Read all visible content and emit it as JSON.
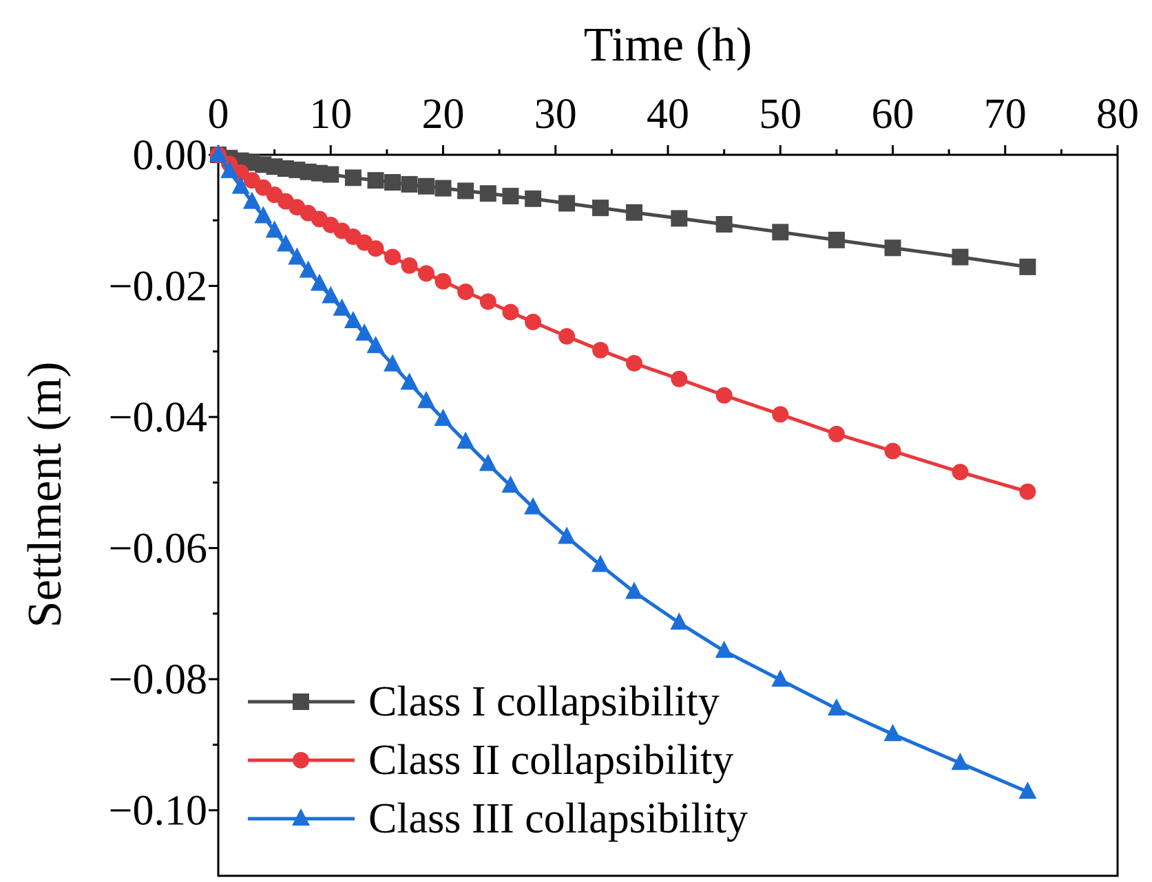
{
  "chart_data": {
    "type": "line",
    "title": "",
    "xlabel": "Time (h)",
    "ylabel": "Settlment (m)",
    "x_axis_position": "top",
    "xlim": [
      0,
      80
    ],
    "ylim": [
      -0.11,
      0.0
    ],
    "x_ticks": [
      0,
      10,
      20,
      30,
      40,
      50,
      60,
      70,
      80
    ],
    "x_tick_labels": [
      "0",
      "10",
      "20",
      "30",
      "40",
      "50",
      "60",
      "70",
      "80"
    ],
    "y_ticks": [
      0.0,
      -0.02,
      -0.04,
      -0.06,
      -0.08,
      -0.1
    ],
    "y_tick_labels": [
      "0.00",
      "−0.02",
      "−0.04",
      "−0.06",
      "−0.08",
      "−0.10"
    ],
    "legend_position": "bottom-left",
    "series": [
      {
        "name": "Class I collapsibility",
        "color": "#4a4a4a",
        "marker": "square",
        "x": [
          0,
          1,
          2,
          3,
          4,
          5,
          6,
          7,
          8,
          9,
          10,
          12,
          14,
          15.5,
          17,
          18.5,
          20,
          22,
          24,
          26,
          28,
          31,
          34,
          37,
          41,
          45,
          50,
          55,
          60,
          66,
          72
        ],
        "values": [
          0,
          -0.0005,
          -0.0009,
          -0.0012,
          -0.0015,
          -0.0018,
          -0.0021,
          -0.0023,
          -0.0026,
          -0.0028,
          -0.003,
          -0.0035,
          -0.0039,
          -0.0042,
          -0.0045,
          -0.0048,
          -0.0051,
          -0.0055,
          -0.0059,
          -0.0063,
          -0.0067,
          -0.0074,
          -0.0081,
          -0.0088,
          -0.0097,
          -0.0106,
          -0.0118,
          -0.013,
          -0.0142,
          -0.0156,
          -0.0171
        ]
      },
      {
        "name": "Class II collapsibility",
        "color": "#e8393d",
        "marker": "circle",
        "x": [
          0,
          1,
          2,
          3,
          4,
          5,
          6,
          7,
          8,
          9,
          10,
          11,
          12,
          13,
          14,
          15.5,
          17,
          18.5,
          20,
          22,
          24,
          26,
          28,
          31,
          34,
          37,
          41,
          45,
          50,
          55,
          60,
          66,
          72
        ],
        "values": [
          0,
          -0.0014,
          -0.0027,
          -0.0039,
          -0.005,
          -0.0061,
          -0.0071,
          -0.008,
          -0.0089,
          -0.0098,
          -0.0107,
          -0.0116,
          -0.0125,
          -0.0134,
          -0.0143,
          -0.0156,
          -0.0169,
          -0.0181,
          -0.0193,
          -0.0209,
          -0.0224,
          -0.024,
          -0.0255,
          -0.0277,
          -0.0298,
          -0.0318,
          -0.0342,
          -0.0367,
          -0.0396,
          -0.0426,
          -0.0452,
          -0.0484,
          -0.0514
        ]
      },
      {
        "name": "Class III collapsibility",
        "color": "#1c6fd9",
        "marker": "triangle",
        "x": [
          0,
          1,
          2,
          3,
          4,
          5,
          6,
          7,
          8,
          9,
          10,
          11,
          12,
          13,
          14,
          15.5,
          17,
          18.5,
          20,
          22,
          24,
          26,
          28,
          31,
          34,
          37,
          41,
          45,
          50,
          55,
          60,
          66,
          72
        ],
        "values": [
          0,
          -0.0025,
          -0.0049,
          -0.0072,
          -0.0094,
          -0.0116,
          -0.0137,
          -0.0157,
          -0.0177,
          -0.0197,
          -0.0216,
          -0.0235,
          -0.0254,
          -0.0273,
          -0.0292,
          -0.032,
          -0.0348,
          -0.0376,
          -0.0403,
          -0.0438,
          -0.0472,
          -0.0505,
          -0.0538,
          -0.0583,
          -0.0626,
          -0.0667,
          -0.0714,
          -0.0757,
          -0.0801,
          -0.0845,
          -0.0884,
          -0.0928,
          -0.0972
        ]
      }
    ]
  }
}
